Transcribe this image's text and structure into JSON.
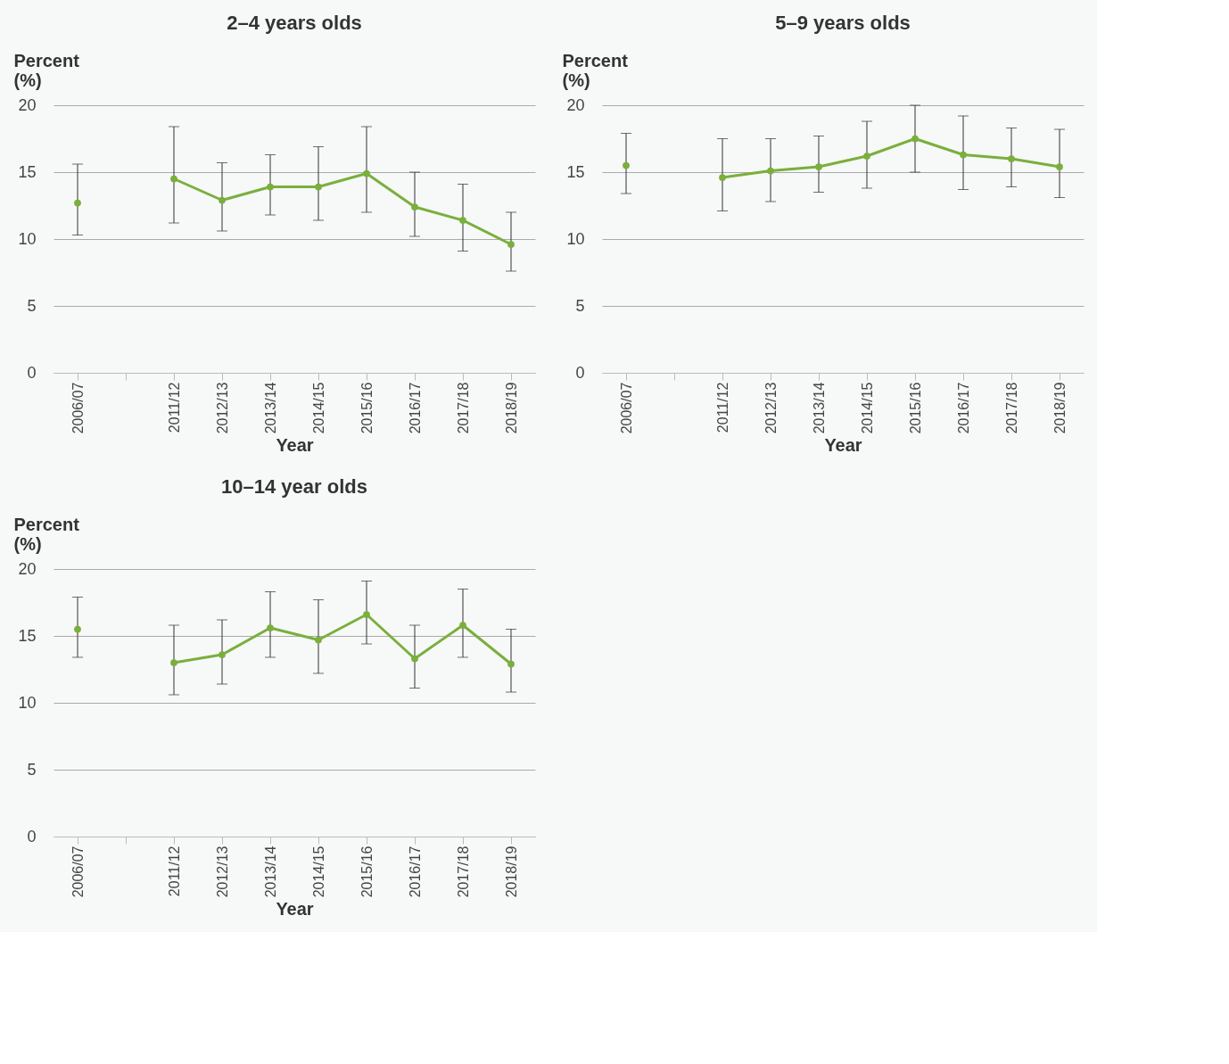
{
  "chart_data": [
    {
      "type": "line",
      "title": "2–4 years olds",
      "xlabel": "Year",
      "ylabel": "Percent (%)",
      "categories": [
        "2006/07",
        null,
        "2011/12",
        "2012/13",
        "2013/14",
        "2014/15",
        "2015/16",
        "2016/17",
        "2017/18",
        "2018/19"
      ],
      "ylim": [
        0,
        20
      ],
      "yticks": [
        0,
        5,
        10,
        15,
        20
      ],
      "grid": "y",
      "marker": "circle",
      "series": [
        {
          "color": "#7aaf3c",
          "values": [
            12.7,
            null,
            14.5,
            12.9,
            13.9,
            13.9,
            14.9,
            12.4,
            11.4,
            9.6
          ],
          "errors": [
            [
              10.3,
              15.6
            ],
            null,
            [
              11.2,
              18.4
            ],
            [
              10.6,
              15.7
            ],
            [
              11.8,
              16.3
            ],
            [
              11.4,
              16.9
            ],
            [
              12.0,
              18.4
            ],
            [
              10.2,
              15.0
            ],
            [
              9.1,
              14.1
            ],
            [
              7.6,
              12.0
            ]
          ]
        }
      ]
    },
    {
      "type": "line",
      "title": "5–9 years olds",
      "xlabel": "Year",
      "ylabel": "Percent (%)",
      "categories": [
        "2006/07",
        null,
        "2011/12",
        "2012/13",
        "2013/14",
        "2014/15",
        "2015/16",
        "2016/17",
        "2017/18",
        "2018/19"
      ],
      "ylim": [
        0,
        20
      ],
      "yticks": [
        0,
        5,
        10,
        15,
        20
      ],
      "grid": "y",
      "marker": "circle",
      "series": [
        {
          "color": "#7aaf3c",
          "values": [
            15.5,
            null,
            14.6,
            15.1,
            15.4,
            16.2,
            17.5,
            16.3,
            16.0,
            15.4
          ],
          "errors": [
            [
              13.4,
              17.9
            ],
            null,
            [
              12.1,
              17.5
            ],
            [
              12.8,
              17.5
            ],
            [
              13.5,
              17.7
            ],
            [
              13.8,
              18.8
            ],
            [
              15.0,
              20.0
            ],
            [
              13.7,
              19.2
            ],
            [
              13.9,
              18.3
            ],
            [
              13.1,
              18.2
            ]
          ]
        }
      ]
    },
    {
      "type": "line",
      "title": "10–14 year olds",
      "xlabel": "Year",
      "ylabel": "Percent (%)",
      "categories": [
        "2006/07",
        null,
        "2011/12",
        "2012/13",
        "2013/14",
        "2014/15",
        "2015/16",
        "2016/17",
        "2017/18",
        "2018/19"
      ],
      "ylim": [
        0,
        20
      ],
      "yticks": [
        0,
        5,
        10,
        15,
        20
      ],
      "grid": "y",
      "marker": "circle",
      "series": [
        {
          "color": "#7aaf3c",
          "values": [
            15.5,
            null,
            13.0,
            13.6,
            15.6,
            14.7,
            16.6,
            13.3,
            15.8,
            12.9
          ],
          "errors": [
            [
              13.4,
              17.9
            ],
            null,
            [
              10.6,
              15.8
            ],
            [
              11.4,
              16.2
            ],
            [
              13.4,
              18.3
            ],
            [
              12.2,
              17.7
            ],
            [
              14.4,
              19.1
            ],
            [
              11.1,
              15.8
            ],
            [
              13.4,
              18.5
            ],
            [
              10.8,
              15.5
            ]
          ]
        }
      ]
    }
  ]
}
